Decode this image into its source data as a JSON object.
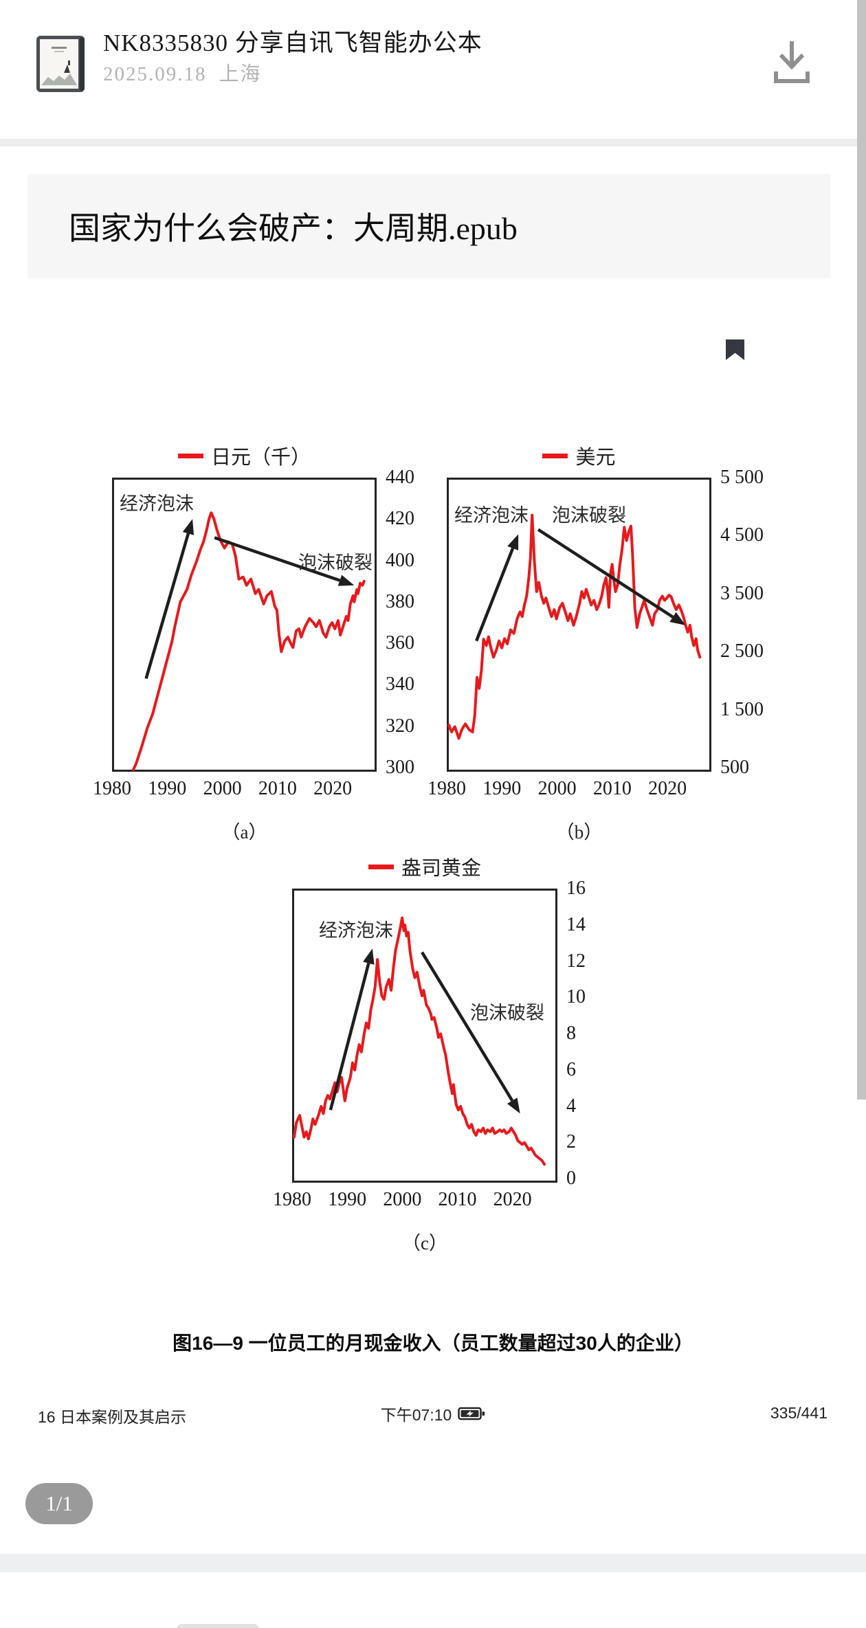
{
  "share_header": {
    "title": "NK8335830  分享自讯飞智能办公本",
    "date": "2025.09.18",
    "location": "上海"
  },
  "file_card": {
    "title": "国家为什么会破产：大周期.epub"
  },
  "reader": {
    "caption": "图16—9 一位员工的月现金收入（员工数量超过30人的企业）",
    "footer": {
      "chapter": "16 日本案例及其启示",
      "time": "下午07:10",
      "page": "335/441"
    },
    "page_indicator": "1/1"
  },
  "colors": {
    "line_red": "#e8191c",
    "arrow_black": "#1e1e1e"
  },
  "chart_data": [
    {
      "id": "a",
      "type": "line",
      "legend": "日元（千）",
      "sublabel": "（a）",
      "annotations": {
        "bubble": "经济泡沫",
        "burst": "泡沫破裂"
      },
      "xlim": [
        1980,
        2027.2
      ],
      "ylim": [
        300,
        440
      ],
      "x_ticks": [
        1980,
        1990,
        2000,
        2010,
        2020
      ],
      "y_ticks": [
        {
          "label": "440",
          "value": 440
        },
        {
          "label": "420",
          "value": 420
        },
        {
          "label": "400",
          "value": 400
        },
        {
          "label": "380",
          "value": 380
        },
        {
          "label": "360",
          "value": 360
        },
        {
          "label": "340",
          "value": 340
        },
        {
          "label": "320",
          "value": 320
        },
        {
          "label": "300",
          "value": 300
        }
      ],
      "line_color": "#e8191c",
      "arrows": [
        {
          "from": [
            1985.8,
            344
          ],
          "to": [
            1994.2,
            421
          ]
        },
        {
          "from": [
            1998.2,
            412
          ],
          "to": [
            2023.5,
            389
          ]
        }
      ],
      "series": [
        [
          1983.5,
          300
        ],
        [
          1984,
          303
        ],
        [
          1985,
          311
        ],
        [
          1986,
          320
        ],
        [
          1987,
          327
        ],
        [
          1988,
          337
        ],
        [
          1989,
          347
        ],
        [
          1990,
          357
        ],
        [
          1990.5,
          362
        ],
        [
          1991,
          369
        ],
        [
          1992,
          381
        ],
        [
          1992.6,
          384
        ],
        [
          1993.2,
          387
        ],
        [
          1994,
          394
        ],
        [
          1995,
          401
        ],
        [
          1995.6,
          406
        ],
        [
          1996.2,
          410
        ],
        [
          1996.7,
          415
        ],
        [
          1997.2,
          421
        ],
        [
          1997.6,
          424
        ],
        [
          1998.1,
          421
        ],
        [
          1998.6,
          416
        ],
        [
          1999.2,
          411
        ],
        [
          2000,
          407
        ],
        [
          2000.7,
          410
        ],
        [
          2001.4,
          409
        ],
        [
          2002,
          403
        ],
        [
          2002.6,
          392
        ],
        [
          2003.4,
          393
        ],
        [
          2004,
          389
        ],
        [
          2004.8,
          392
        ],
        [
          2005.6,
          385
        ],
        [
          2006.2,
          387
        ],
        [
          2007.1,
          380
        ],
        [
          2007.7,
          384
        ],
        [
          2008.5,
          386
        ],
        [
          2009.1,
          379
        ],
        [
          2009.5,
          377
        ],
        [
          2009.9,
          365
        ],
        [
          2010.3,
          357
        ],
        [
          2010.9,
          362
        ],
        [
          2011.5,
          364
        ],
        [
          2012,
          361
        ],
        [
          2012.4,
          359
        ],
        [
          2013,
          367
        ],
        [
          2013.5,
          368
        ],
        [
          2013.9,
          364
        ],
        [
          2014.6,
          369
        ],
        [
          2015.4,
          373
        ],
        [
          2016.1,
          371
        ],
        [
          2016.6,
          369
        ],
        [
          2017.2,
          372
        ],
        [
          2017.9,
          366
        ],
        [
          2018.4,
          364
        ],
        [
          2019,
          369
        ],
        [
          2019.5,
          371
        ],
        [
          2020,
          368
        ],
        [
          2020.6,
          372
        ],
        [
          2021,
          365
        ],
        [
          2021.6,
          370
        ],
        [
          2022.1,
          374
        ],
        [
          2022.4,
          372
        ],
        [
          2022.8,
          380
        ],
        [
          2023.3,
          384
        ],
        [
          2023.5,
          381
        ],
        [
          2024,
          387
        ],
        [
          2024.2,
          385
        ],
        [
          2024.6,
          390
        ],
        [
          2025,
          389
        ],
        [
          2025.3,
          391
        ]
      ]
    },
    {
      "id": "b",
      "type": "line",
      "legend": "美元",
      "sublabel": "（b）",
      "annotations": {
        "bubble": "经济泡沫",
        "burst": "泡沫破裂"
      },
      "xlim": [
        1980,
        2027.2
      ],
      "ylim": [
        500,
        5500
      ],
      "x_ticks": [
        1980,
        1990,
        2000,
        2010,
        2020
      ],
      "y_ticks": [
        {
          "label": "5 500",
          "value": 5500
        },
        {
          "label": "4 500",
          "value": 4500
        },
        {
          "label": "3 500",
          "value": 3500
        },
        {
          "label": "2 500",
          "value": 2500
        },
        {
          "label": "1 500",
          "value": 1500
        },
        {
          "label": "500",
          "value": 500
        }
      ],
      "line_color": "#e8191c",
      "arrows": [
        {
          "from": [
            1985.0,
            2720
          ],
          "to": [
            1992.6,
            4560
          ]
        },
        {
          "from": [
            1996.2,
            4640
          ],
          "to": [
            2022.9,
            2990
          ]
        }
      ],
      "series": [
        [
          1980,
          1270
        ],
        [
          1980.5,
          1150
        ],
        [
          1981.1,
          1240
        ],
        [
          1981.8,
          1040
        ],
        [
          1982.4,
          1200
        ],
        [
          1983,
          1290
        ],
        [
          1983.7,
          1190
        ],
        [
          1984.3,
          1150
        ],
        [
          1984.7,
          1430
        ],
        [
          1985.1,
          2090
        ],
        [
          1985.5,
          1900
        ],
        [
          1985.9,
          2210
        ],
        [
          1986.3,
          2750
        ],
        [
          1986.8,
          2640
        ],
        [
          1987.2,
          2790
        ],
        [
          1987.6,
          2610
        ],
        [
          1988.1,
          2440
        ],
        [
          1988.6,
          2560
        ],
        [
          1989.1,
          2720
        ],
        [
          1989.6,
          2600
        ],
        [
          1990.1,
          2760
        ],
        [
          1990.6,
          2670
        ],
        [
          1991.2,
          2910
        ],
        [
          1991.8,
          2850
        ],
        [
          1992.4,
          3110
        ],
        [
          1992.9,
          3220
        ],
        [
          1993.3,
          3140
        ],
        [
          1993.7,
          3340
        ],
        [
          1994.1,
          3490
        ],
        [
          1994.5,
          3810
        ],
        [
          1994.8,
          4160
        ],
        [
          1995.1,
          4890
        ],
        [
          1995.5,
          4100
        ],
        [
          1995.9,
          3570
        ],
        [
          1996.3,
          3730
        ],
        [
          1996.8,
          3490
        ],
        [
          1997.2,
          3370
        ],
        [
          1997.6,
          3460
        ],
        [
          1998.1,
          3300
        ],
        [
          1998.6,
          3140
        ],
        [
          1999.1,
          3260
        ],
        [
          1999.5,
          3100
        ],
        [
          2000.1,
          3300
        ],
        [
          2000.6,
          3370
        ],
        [
          2001.1,
          3220
        ],
        [
          2001.6,
          3070
        ],
        [
          2002,
          3190
        ],
        [
          2002.6,
          2990
        ],
        [
          2003.1,
          3140
        ],
        [
          2003.7,
          3370
        ],
        [
          2004.1,
          3570
        ],
        [
          2004.5,
          3460
        ],
        [
          2004.9,
          3610
        ],
        [
          2005.3,
          3490
        ],
        [
          2005.8,
          3340
        ],
        [
          2006.3,
          3420
        ],
        [
          2006.8,
          3260
        ],
        [
          2007.2,
          3340
        ],
        [
          2007.7,
          3490
        ],
        [
          2008.1,
          3690
        ],
        [
          2008.5,
          3810
        ],
        [
          2008.8,
          3570
        ],
        [
          2009,
          3300
        ],
        [
          2009.3,
          3890
        ],
        [
          2009.6,
          4040
        ],
        [
          2009.9,
          3770
        ],
        [
          2010.2,
          3570
        ],
        [
          2010.6,
          3690
        ],
        [
          2011,
          4040
        ],
        [
          2011.4,
          4300
        ],
        [
          2011.8,
          4680
        ],
        [
          2012.2,
          4450
        ],
        [
          2012.6,
          4600
        ],
        [
          2013,
          4700
        ],
        [
          2013.3,
          4200
        ],
        [
          2013.7,
          3300
        ],
        [
          2014.1,
          2950
        ],
        [
          2014.6,
          3190
        ],
        [
          2015,
          3300
        ],
        [
          2015.4,
          3420
        ],
        [
          2015.9,
          3260
        ],
        [
          2016.5,
          3100
        ],
        [
          2016.9,
          2990
        ],
        [
          2017.3,
          3190
        ],
        [
          2017.8,
          3260
        ],
        [
          2018.2,
          3420
        ],
        [
          2018.7,
          3490
        ],
        [
          2019.1,
          3420
        ],
        [
          2019.5,
          3460
        ],
        [
          2019.9,
          3510
        ],
        [
          2020.3,
          3480
        ],
        [
          2020.7,
          3370
        ],
        [
          2021.2,
          3260
        ],
        [
          2021.7,
          3340
        ],
        [
          2022.1,
          3250
        ],
        [
          2022.5,
          3140
        ],
        [
          2022.9,
          2990
        ],
        [
          2023.3,
          2870
        ],
        [
          2023.7,
          2990
        ],
        [
          2024,
          2790
        ],
        [
          2024.4,
          2640
        ],
        [
          2024.8,
          2760
        ],
        [
          2025.1,
          2560
        ],
        [
          2025.5,
          2440
        ]
      ]
    },
    {
      "id": "c",
      "type": "line",
      "legend": "盎司黄金",
      "sublabel": "（c）",
      "annotations": {
        "bubble": "经济泡沫",
        "burst": "泡沫破裂"
      },
      "xlim": [
        1980,
        2027.4
      ],
      "ylim": [
        0,
        16
      ],
      "x_ticks": [
        1980,
        1990,
        2000,
        2010,
        2020
      ],
      "y_ticks": [
        {
          "label": "16",
          "value": 16
        },
        {
          "label": "14",
          "value": 14
        },
        {
          "label": "12",
          "value": 12
        },
        {
          "label": "10",
          "value": 10
        },
        {
          "label": "8",
          "value": 8
        },
        {
          "label": "6",
          "value": 6
        },
        {
          "label": "4",
          "value": 4
        },
        {
          "label": "2",
          "value": 2
        },
        {
          "label": "0",
          "value": 0
        }
      ],
      "line_color": "#e8191c",
      "arrows": [
        {
          "from": [
            1986.6,
            3.9
          ],
          "to": [
            1994.2,
            12.8
          ]
        },
        {
          "from": [
            2003.2,
            12.6
          ],
          "to": [
            2021.0,
            3.7
          ]
        }
      ],
      "series": [
        [
          1980,
          2.4
        ],
        [
          1980.4,
          3.2
        ],
        [
          1981,
          3.6
        ],
        [
          1981.4,
          3.0
        ],
        [
          1981.8,
          2.4
        ],
        [
          1982.2,
          2.7
        ],
        [
          1982.6,
          2.3
        ],
        [
          1983,
          2.8
        ],
        [
          1983.4,
          3.4
        ],
        [
          1983.8,
          3.1
        ],
        [
          1984.4,
          3.6
        ],
        [
          1984.9,
          4.1
        ],
        [
          1985.3,
          3.7
        ],
        [
          1985.7,
          4.4
        ],
        [
          1986.1,
          4.7
        ],
        [
          1986.5,
          4.5
        ],
        [
          1987,
          5.0
        ],
        [
          1987.4,
          5.4
        ],
        [
          1987.8,
          4.9
        ],
        [
          1988.2,
          5.4
        ],
        [
          1988.6,
          5.7
        ],
        [
          1989.2,
          4.4
        ],
        [
          1989.6,
          5.1
        ],
        [
          1990.2,
          5.7
        ],
        [
          1990.6,
          6.5
        ],
        [
          1991,
          6.1
        ],
        [
          1991.4,
          6.9
        ],
        [
          1991.8,
          7.5
        ],
        [
          1992.2,
          7.1
        ],
        [
          1992.7,
          8.1
        ],
        [
          1993.1,
          8.7
        ],
        [
          1993.5,
          8.4
        ],
        [
          1993.9,
          9.4
        ],
        [
          1994.3,
          10.0
        ],
        [
          1994.7,
          10.7
        ],
        [
          1995.1,
          12.2
        ],
        [
          1995.5,
          11.0
        ],
        [
          1995.9,
          10.2
        ],
        [
          1996.3,
          10.0
        ],
        [
          1996.7,
          10.7
        ],
        [
          1997.2,
          11.1
        ],
        [
          1997.6,
          10.5
        ],
        [
          1998,
          11.7
        ],
        [
          1998.4,
          12.7
        ],
        [
          1998.9,
          13.4
        ],
        [
          1999.3,
          14.0
        ],
        [
          1999.6,
          14.5
        ],
        [
          1999.9,
          13.8
        ],
        [
          2000.1,
          14.1
        ],
        [
          2000.4,
          13.5
        ],
        [
          2000.7,
          13.7
        ],
        [
          2001,
          12.7
        ],
        [
          2001.5,
          11.7
        ],
        [
          2001.9,
          11.2
        ],
        [
          2002.3,
          11.5
        ],
        [
          2002.8,
          10.7
        ],
        [
          2003.2,
          10.2
        ],
        [
          2003.5,
          10.5
        ],
        [
          2004,
          9.7
        ],
        [
          2004.4,
          9.5
        ],
        [
          2004.8,
          9.2
        ],
        [
          2005,
          8.9
        ],
        [
          2005.4,
          9.0
        ],
        [
          2005.9,
          8.4
        ],
        [
          2006.2,
          7.9
        ],
        [
          2006.6,
          8.1
        ],
        [
          2007.1,
          7.4
        ],
        [
          2007.5,
          6.9
        ],
        [
          2008,
          5.9
        ],
        [
          2008.3,
          5.4
        ],
        [
          2008.7,
          4.8
        ],
        [
          2008.9,
          5.3
        ],
        [
          2009.4,
          4.2
        ],
        [
          2009.8,
          3.9
        ],
        [
          2010.2,
          4.1
        ],
        [
          2010.6,
          3.7
        ],
        [
          2011,
          3.5
        ],
        [
          2011.4,
          3.1
        ],
        [
          2011.8,
          2.9
        ],
        [
          2012.2,
          3.1
        ],
        [
          2012.6,
          2.7
        ],
        [
          2013,
          2.5
        ],
        [
          2013.4,
          2.8
        ],
        [
          2013.9,
          2.7
        ],
        [
          2014.3,
          2.9
        ],
        [
          2014.7,
          2.6
        ],
        [
          2015.1,
          2.8
        ],
        [
          2015.6,
          2.7
        ],
        [
          2016,
          2.9
        ],
        [
          2016.4,
          2.6
        ],
        [
          2016.9,
          2.7
        ],
        [
          2017.3,
          2.8
        ],
        [
          2017.7,
          2.7
        ],
        [
          2018.1,
          2.8
        ],
        [
          2018.5,
          2.6
        ],
        [
          2019,
          2.7
        ],
        [
          2019.4,
          2.9
        ],
        [
          2019.8,
          2.7
        ],
        [
          2020.2,
          2.5
        ],
        [
          2020.6,
          2.2
        ],
        [
          2021,
          2.1
        ],
        [
          2021.4,
          2.0
        ],
        [
          2021.8,
          2.1
        ],
        [
          2022.2,
          1.9
        ],
        [
          2022.6,
          1.7
        ],
        [
          2023,
          1.8
        ],
        [
          2023.4,
          1.6
        ],
        [
          2023.8,
          1.4
        ],
        [
          2024.2,
          1.3
        ],
        [
          2024.6,
          1.2
        ],
        [
          2025,
          1.1
        ],
        [
          2025.4,
          0.9
        ]
      ]
    }
  ]
}
